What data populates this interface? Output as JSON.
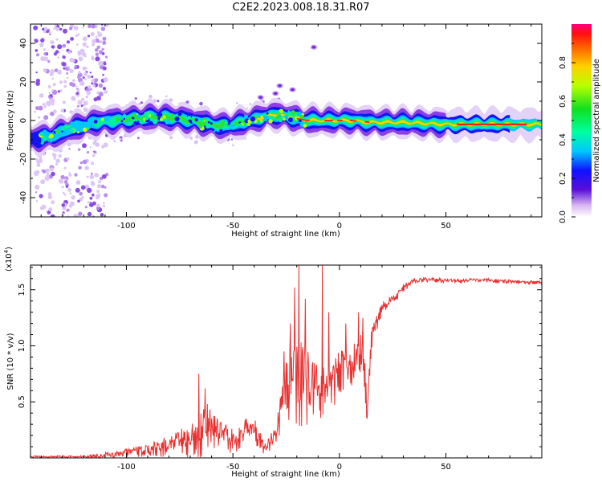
{
  "title": "C2E2.2023.008.18.31.R07",
  "chart_data": [
    {
      "type": "heatmap",
      "xlabel": "Height of straight line (km)",
      "ylabel": "Frequency (Hz)",
      "xlim": [
        -145,
        95
      ],
      "ylim": [
        -50,
        50
      ],
      "xticks": [
        -100,
        -50,
        0,
        50
      ],
      "yticks": [
        -40,
        -20,
        0,
        20,
        40
      ],
      "colorbar": {
        "label": "Normalized spectral amplitude",
        "range": [
          0.0,
          1.0
        ],
        "ticks": [
          0.0,
          0.2,
          0.4,
          0.6,
          0.8
        ]
      },
      "ridge": {
        "x": [
          -145,
          -135,
          -125,
          -115,
          -105,
          -95,
          -85,
          -75,
          -65,
          -55,
          -45,
          -35,
          -30,
          -25,
          -15,
          -5,
          5,
          15,
          30,
          50,
          70,
          95
        ],
        "y": [
          -10,
          -8,
          -4,
          -1,
          0,
          1,
          2,
          1,
          -1,
          -3,
          -1,
          2,
          3,
          2,
          0,
          0,
          0,
          -1,
          -1,
          -2,
          -2,
          -2
        ]
      }
    },
    {
      "type": "line",
      "xlabel": "Height of straight line (km)",
      "ylabel": "SNR (10 * v/v)",
      "yscale_label": "(x10",
      "yscale_exp": "4",
      "xlim": [
        -145,
        95
      ],
      "ylim": [
        0,
        1.72
      ],
      "xticks": [
        -100,
        -50,
        0,
        50
      ],
      "yticks": [
        0.5,
        1.0,
        1.5
      ],
      "ytick_labels": [
        "0.5",
        "1.0",
        "1.5"
      ],
      "envelope": {
        "x": [
          -145,
          -130,
          -120,
          -110,
          -100,
          -90,
          -80,
          -70,
          -62,
          -55,
          -48,
          -42,
          -38,
          -35,
          -30,
          -26,
          -24,
          -22,
          -20,
          -17,
          -14,
          -10,
          -6,
          -2,
          0,
          3,
          6,
          8,
          10,
          12,
          13,
          15,
          18,
          20,
          25,
          30,
          35,
          40,
          50,
          60,
          70,
          80,
          95
        ],
        "y": [
          0.02,
          0.02,
          0.02,
          0.05,
          0.08,
          0.12,
          0.2,
          0.3,
          0.48,
          0.32,
          0.25,
          0.4,
          0.3,
          0.12,
          0.3,
          0.85,
          0.98,
          1.0,
          1.05,
          1.08,
          0.92,
          0.85,
          0.8,
          0.9,
          1.02,
          0.95,
          1.0,
          1.15,
          1.12,
          0.9,
          0.45,
          1.15,
          1.3,
          1.4,
          1.45,
          1.55,
          1.6,
          1.61,
          1.6,
          1.6,
          1.6,
          1.59,
          1.58
        ]
      },
      "noise": {
        "x": [
          -145,
          -125,
          -115,
          -110,
          -100,
          -90,
          -80,
          -75,
          -70,
          -65,
          -60,
          -55,
          -50,
          -45,
          -40,
          -35,
          -30,
          -27,
          -25,
          -22,
          -20,
          -18,
          -15,
          -12,
          -8,
          -4,
          0,
          4,
          8,
          12,
          15,
          18,
          22,
          28,
          35,
          95
        ],
        "amp": [
          0.02,
          0.02,
          0.03,
          0.05,
          0.05,
          0.07,
          0.12,
          0.15,
          0.2,
          0.3,
          0.22,
          0.15,
          0.15,
          0.12,
          0.18,
          0.06,
          0.15,
          0.3,
          0.45,
          0.55,
          0.6,
          0.55,
          0.45,
          0.35,
          0.3,
          0.25,
          0.3,
          0.28,
          0.25,
          0.2,
          0.12,
          0.1,
          0.08,
          0.05,
          0.03,
          0.02
        ]
      },
      "spikes": [
        {
          "x": -66,
          "y": 0.75
        },
        {
          "x": -63,
          "y": 0.62
        },
        {
          "x": -62,
          "y": 0.48
        },
        {
          "x": -26,
          "y": 0.95
        },
        {
          "x": -23,
          "y": 1.2
        },
        {
          "x": -21,
          "y": 1.52
        },
        {
          "x": -19,
          "y": 1.72
        },
        {
          "x": -16,
          "y": 1.42
        },
        {
          "x": -8,
          "y": 1.72
        },
        {
          "x": -5,
          "y": 1.3
        },
        {
          "x": 3,
          "y": 1.2
        },
        {
          "x": 9,
          "y": 1.3
        },
        {
          "x": 11,
          "y": 1.25
        },
        {
          "x": 13,
          "y": 0.35
        }
      ],
      "color": "#e83030"
    }
  ]
}
